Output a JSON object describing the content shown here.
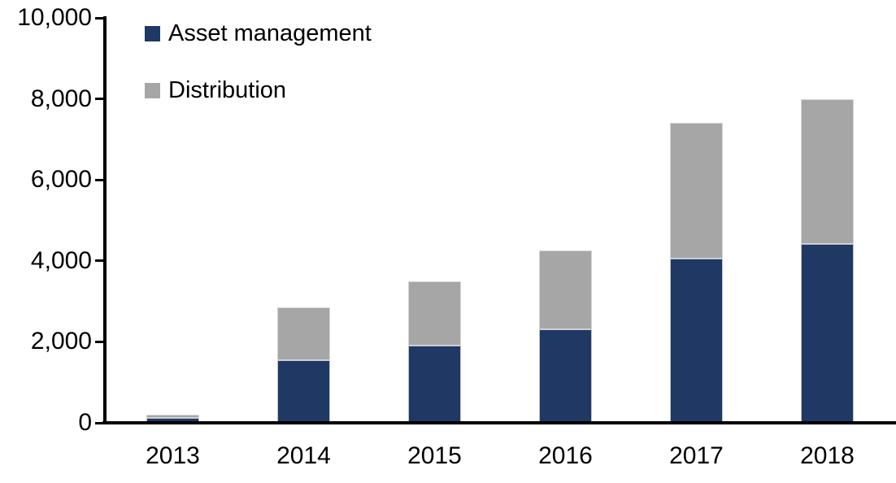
{
  "chart_data": {
    "type": "bar",
    "stacked": true,
    "title": "",
    "xlabel": "",
    "ylabel": "",
    "categories": [
      "2013",
      "2014",
      "2015",
      "2016",
      "2017",
      "2018"
    ],
    "series": [
      {
        "name": "Asset management",
        "color": "#1F3864",
        "values": [
          120,
          1550,
          1900,
          2300,
          4050,
          4420
        ]
      },
      {
        "name": "Distribution",
        "color": "#A6A6A6",
        "values": [
          80,
          1300,
          1600,
          1950,
          3350,
          3580
        ]
      }
    ],
    "stacked_totals": [
      200,
      2850,
      3500,
      4250,
      7400,
      8000
    ],
    "ylim": [
      0,
      10000
    ],
    "y_tick_values": [
      0,
      2000,
      4000,
      6000,
      8000,
      10000
    ],
    "y_tick_labels": [
      "0",
      "2,000",
      "4,000",
      "6,000",
      "8,000",
      "10,000"
    ],
    "grid": false,
    "legend_position": "top-left",
    "axis_color": "#000000",
    "background_color": "#FFFFFF"
  }
}
